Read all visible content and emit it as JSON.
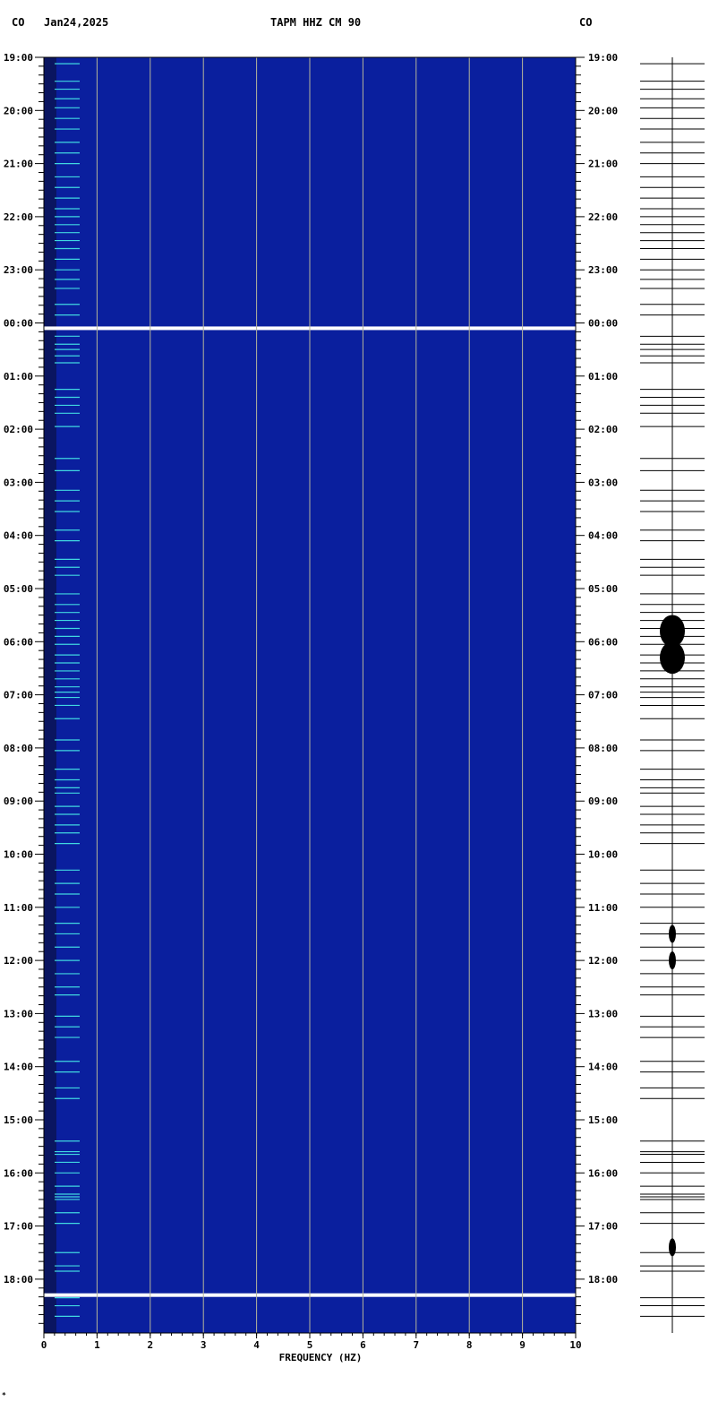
{
  "header": {
    "left_code": "CO",
    "date": "Jan24,2025",
    "station": "TAPM HHZ CM 90",
    "right_code": "CO"
  },
  "footer": {
    "mark": "*"
  },
  "colors": {
    "background": "#0a1f9e",
    "gridline": "#b5b59a",
    "low_band": "#0a1560",
    "weak_line": "#cc2020",
    "mid_line": "#d8d838",
    "strong_line": "#40d8e0",
    "gap": "#ffffff"
  },
  "chart_data": {
    "type": "heatmap",
    "title": "TAPM HHZ CM 90",
    "xlabel": "FREQUENCY (HZ)",
    "ylabel": "",
    "xlim": [
      0,
      10
    ],
    "x_ticks": [
      "0",
      "1",
      "2",
      "3",
      "4",
      "5",
      "6",
      "7",
      "8",
      "9",
      "10"
    ],
    "time_start_hour": 19,
    "hours_shown": 24,
    "y_tick_labels": [
      "19:00",
      "20:00",
      "21:00",
      "22:00",
      "23:00",
      "00:00",
      "01:00",
      "02:00",
      "03:00",
      "04:00",
      "05:00",
      "06:00",
      "07:00",
      "08:00",
      "09:00",
      "10:00",
      "11:00",
      "12:00",
      "13:00",
      "14:00",
      "15:00",
      "16:00",
      "17:00",
      "18:00"
    ],
    "data_gaps_hours_after_start": [
      5.1,
      23.3
    ],
    "horizontal_lines_hours_after_start": [
      0.12,
      0.45,
      0.6,
      0.78,
      0.95,
      1.15,
      1.35,
      1.6,
      1.8,
      2.0,
      2.25,
      2.45,
      2.65,
      2.85,
      3.0,
      3.15,
      3.3,
      3.45,
      3.6,
      3.8,
      4.0,
      4.18,
      4.35,
      4.65,
      4.85,
      5.25,
      5.4,
      5.5,
      5.62,
      5.75,
      6.25,
      6.4,
      6.55,
      6.7,
      6.95,
      7.55,
      7.78,
      8.15,
      8.35,
      8.55,
      8.9,
      9.1,
      9.45,
      9.6,
      9.75,
      10.1,
      10.3,
      10.45,
      10.6,
      10.75,
      10.9,
      11.05,
      11.25,
      11.4,
      11.55,
      11.7,
      11.85,
      11.95,
      12.05,
      12.2,
      12.45,
      12.85,
      13.05,
      13.4,
      13.6,
      13.75,
      13.85,
      14.1,
      14.25,
      14.45,
      14.6,
      14.8,
      15.3,
      15.55,
      15.75,
      16.0,
      16.3,
      16.5,
      16.75,
      17.0,
      17.25,
      17.5,
      17.65,
      18.05,
      18.25,
      18.45,
      18.9,
      19.1,
      19.4,
      19.6,
      20.4,
      20.6,
      20.65,
      20.8,
      21.0,
      21.25,
      21.4,
      21.45,
      21.5,
      21.75,
      21.95,
      22.5,
      22.75,
      22.85,
      23.35,
      23.5,
      23.7
    ],
    "trace_event_hours_after_start": [
      10.8,
      11.3,
      16.5,
      17.0,
      22.4
    ]
  }
}
